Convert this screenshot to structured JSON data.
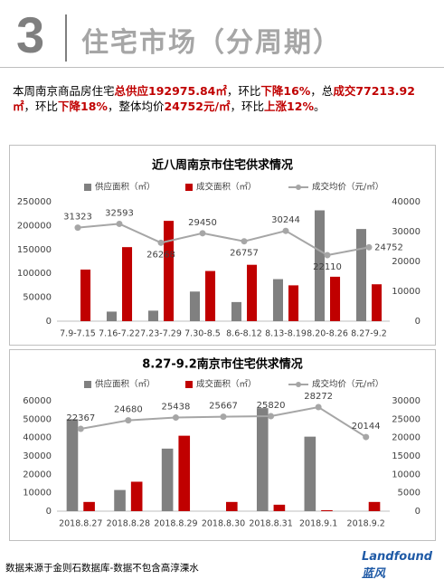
{
  "header": {
    "number": "3",
    "title": "住宅市场（分周期）"
  },
  "paragraph": {
    "runs": [
      {
        "text": "本周南京商品房住宅",
        "emphasis": false
      },
      {
        "text": "总供应192975.84㎡",
        "emphasis": true
      },
      {
        "text": "，环比",
        "emphasis": false
      },
      {
        "text": "下降16%",
        "emphasis": true
      },
      {
        "text": "，总",
        "emphasis": false
      },
      {
        "text": "成交77213.92㎡",
        "emphasis": true
      },
      {
        "text": "，环比",
        "emphasis": false
      },
      {
        "text": "下降18%",
        "emphasis": true
      },
      {
        "text": "，整体均价",
        "emphasis": false
      },
      {
        "text": "24752元/㎡",
        "emphasis": true
      },
      {
        "text": "，环比",
        "emphasis": false
      },
      {
        "text": "上涨12%",
        "emphasis": true
      },
      {
        "text": "。",
        "emphasis": false
      }
    ]
  },
  "chart_data": [
    {
      "type": "bar-line",
      "title": "近八周南京市住宅供求情况",
      "categories": [
        "7.9-7.15",
        "7.16-7.22",
        "7.23-7.29",
        "7.30-8.5",
        "8.6-8.12",
        "8.13-8.19",
        "8.20-8.26",
        "8.27-9.2"
      ],
      "series": [
        {
          "name": "供应面积（㎡）",
          "color": "#808080",
          "type": "bar",
          "values": [
            0,
            20000,
            22000,
            62000,
            40000,
            88000,
            232000,
            192976
          ]
        },
        {
          "name": "成交面积（㎡）",
          "color": "#c00000",
          "type": "bar",
          "values": [
            108000,
            155000,
            210000,
            105000,
            118000,
            75000,
            93000,
            77214
          ]
        },
        {
          "name": "成交均价（元/㎡）",
          "color": "#a6a6a6",
          "type": "line",
          "axis": "y2",
          "values": [
            31323,
            32593,
            26268,
            29450,
            26757,
            30244,
            22110,
            24752
          ]
        }
      ],
      "ylim": [
        0,
        250000
      ],
      "yticks": [
        0,
        50000,
        100000,
        150000,
        200000,
        250000
      ],
      "y2lim": [
        0,
        40000
      ],
      "y2ticks": [
        0,
        10000,
        20000,
        30000,
        40000
      ],
      "grid": false
    },
    {
      "type": "bar-line",
      "title": "8.27-9.2南京市住宅供求情况",
      "categories": [
        "2018.8.27",
        "2018.8.28",
        "2018.8.29",
        "2018.8.30",
        "2018.8.31",
        "2018.9.1",
        "2018.9.2"
      ],
      "series": [
        {
          "name": "供应面积（㎡）",
          "color": "#808080",
          "type": "bar",
          "values": [
            50000,
            11500,
            34000,
            0,
            56000,
            40500,
            0
          ]
        },
        {
          "name": "成交面积（㎡）",
          "color": "#c00000",
          "type": "bar",
          "values": [
            5000,
            16000,
            41000,
            5000,
            3500,
            500,
            5000
          ]
        },
        {
          "name": "成交均价（元/㎡）",
          "color": "#a6a6a6",
          "type": "line",
          "axis": "y2",
          "values": [
            22367,
            24680,
            25438,
            25667,
            25820,
            28272,
            20144
          ]
        }
      ],
      "ylim": [
        0,
        60000
      ],
      "yticks": [
        0,
        10000,
        20000,
        30000,
        40000,
        50000,
        60000
      ],
      "y2lim": [
        0,
        30000
      ],
      "y2ticks": [
        0,
        5000,
        10000,
        15000,
        20000,
        25000,
        30000
      ],
      "grid": false
    }
  ],
  "footer": {
    "source": "数据来源于金则石数据库-数据不包含高淳溧水",
    "logo": "Landfound蓝风"
  }
}
